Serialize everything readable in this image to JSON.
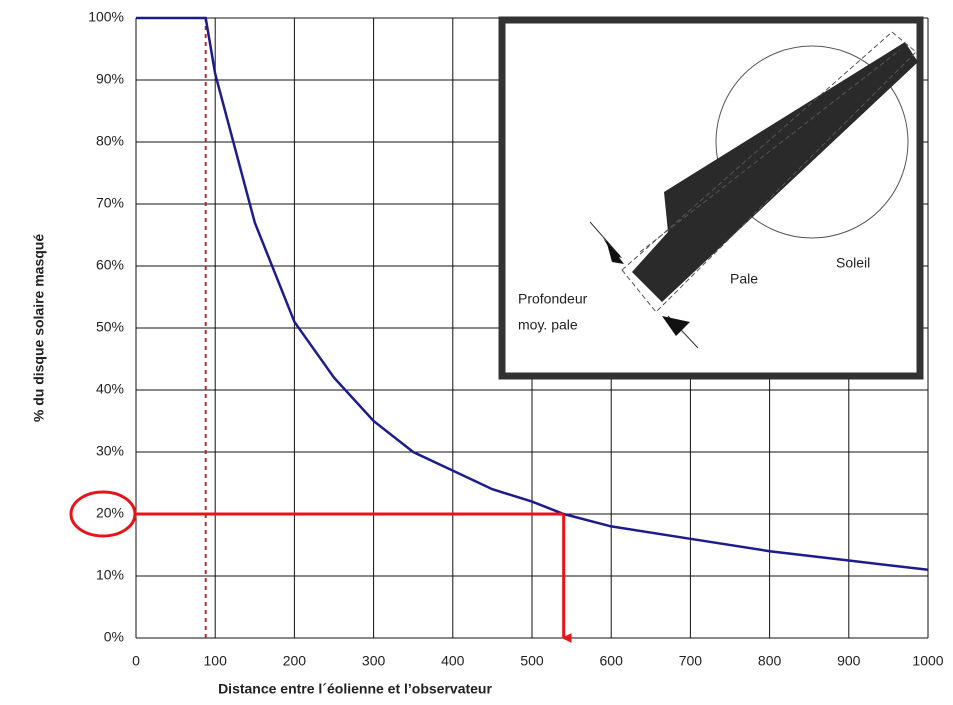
{
  "chart_data": {
    "type": "line",
    "x_label": "Distance entre l´éolienne et l’observateur",
    "y_label": "% du disque solaire masqué",
    "x": [
      0,
      88,
      100,
      150,
      200,
      250,
      300,
      350,
      400,
      450,
      500,
      540,
      600,
      700,
      800,
      900,
      1000
    ],
    "series": [
      {
        "color": "#1c1c8c",
        "values": [
          100,
          100,
          91,
          67,
          51,
          42,
          35,
          30,
          27,
          24,
          22,
          20,
          18,
          16,
          14,
          12.5,
          11
        ]
      }
    ],
    "xlim": [
      0,
      1000
    ],
    "ylim": [
      0,
      100
    ],
    "xticks": [
      0,
      100,
      200,
      300,
      400,
      500,
      600,
      700,
      800,
      900,
      1000
    ],
    "yticks": [
      {
        "value": 0,
        "label": "0%"
      },
      {
        "value": 10,
        "label": "10%"
      },
      {
        "value": 20,
        "label": "20%"
      },
      {
        "value": 30,
        "label": "30%"
      },
      {
        "value": 40,
        "label": "40%"
      },
      {
        "value": 50,
        "label": "50%"
      },
      {
        "value": 60,
        "label": "60%"
      },
      {
        "value": 70,
        "label": "70%"
      },
      {
        "value": 80,
        "label": "80%"
      },
      {
        "value": 90,
        "label": "90%"
      },
      {
        "value": 100,
        "label": "100%"
      }
    ],
    "grid": true,
    "threshold_x": 88,
    "highlight": {
      "x": 540,
      "y": 20,
      "color": "#e8141a"
    },
    "annotations": {
      "depth": [
        "Profondeur",
        "moy. pale"
      ],
      "blade": "Pale",
      "sun": "Soleil"
    }
  }
}
